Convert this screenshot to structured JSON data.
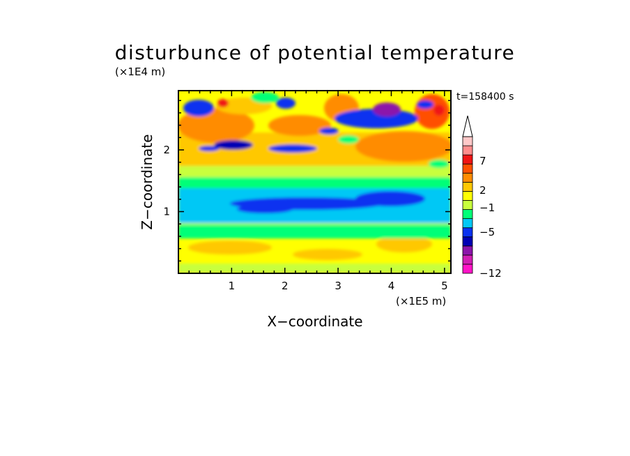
{
  "chart_data": {
    "type": "heatmap",
    "title": "disturbunce of potential temperature",
    "time_label": "t=158400 s",
    "xlabel": "X−coordinate",
    "ylabel": "Z−coordinate",
    "x_unit": "(×1E5 m)",
    "y_unit": "(×1E4 m)",
    "xlim": [
      0,
      5.12
    ],
    "ylim": [
      0,
      2.96
    ],
    "x_ticks": [
      1,
      2,
      3,
      4,
      5
    ],
    "x_tick_labels": [
      "1",
      "2",
      "3",
      "4",
      "5"
    ],
    "y_ticks": [
      1,
      2
    ],
    "y_tick_labels": [
      "1",
      "2"
    ],
    "colorbar": {
      "labels": [
        "7",
        "2",
        "−1",
        "−5",
        "−12"
      ],
      "colors": [
        "#ff14c8",
        "#d21eb4",
        "#8c14aa",
        "#0000b4",
        "#0a32f0",
        "#00c8f5",
        "#00ff78",
        "#c8ff3c",
        "#ffff00",
        "#ffc800",
        "#ff8c00",
        "#ff5000",
        "#f01414",
        "#ff8c8c",
        "#ffc8c8"
      ],
      "extend_top": true
    }
  }
}
